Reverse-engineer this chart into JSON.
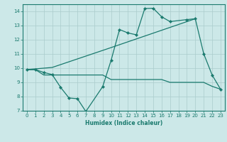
{
  "title": "",
  "xlabel": "Humidex (Indice chaleur)",
  "bg_color": "#cce8e8",
  "line_color": "#1a7a6e",
  "grid_color": "#aacccc",
  "xlim": [
    -0.5,
    23.5
  ],
  "ylim": [
    7,
    14.5
  ],
  "xticks": [
    0,
    1,
    2,
    3,
    4,
    5,
    6,
    7,
    8,
    9,
    10,
    11,
    12,
    13,
    14,
    15,
    16,
    17,
    18,
    19,
    20,
    21,
    22,
    23
  ],
  "yticks": [
    7,
    8,
    9,
    10,
    11,
    12,
    13,
    14
  ],
  "line1_x": [
    0,
    1,
    2,
    3,
    4,
    5,
    6,
    7,
    9,
    10,
    11,
    12,
    13,
    14,
    15,
    16,
    17,
    19,
    20,
    21,
    22,
    23
  ],
  "line1_y": [
    9.9,
    9.9,
    9.7,
    9.55,
    8.65,
    7.9,
    7.85,
    6.95,
    8.7,
    10.55,
    12.72,
    12.48,
    12.35,
    14.2,
    14.22,
    13.62,
    13.28,
    13.42,
    13.48,
    11.02,
    9.52,
    8.52
  ],
  "line2_x": [
    0,
    3,
    10,
    20
  ],
  "line2_y": [
    9.9,
    10.05,
    11.45,
    13.48
  ],
  "line3_x": [
    0,
    1,
    2,
    3,
    4,
    5,
    6,
    7,
    8,
    9,
    10,
    11,
    12,
    13,
    14,
    15,
    16,
    17,
    18,
    19,
    20,
    21,
    22,
    23
  ],
  "line3_y": [
    9.9,
    9.9,
    9.52,
    9.52,
    9.52,
    9.52,
    9.52,
    9.52,
    9.52,
    9.52,
    9.2,
    9.2,
    9.2,
    9.2,
    9.2,
    9.2,
    9.2,
    9.0,
    9.0,
    9.0,
    9.0,
    9.0,
    8.72,
    8.52
  ]
}
